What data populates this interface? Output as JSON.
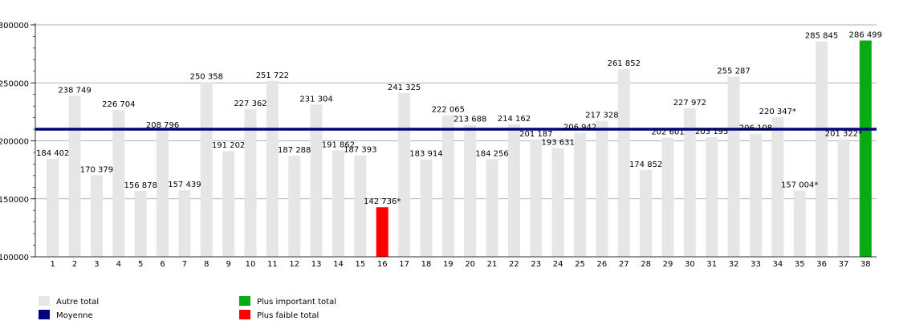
{
  "chart_data": {
    "type": "bar",
    "categories": [
      "1",
      "2",
      "3",
      "4",
      "5",
      "6",
      "7",
      "8",
      "9",
      "10",
      "11",
      "12",
      "13",
      "14",
      "15",
      "16",
      "17",
      "18",
      "19",
      "20",
      "21",
      "22",
      "23",
      "24",
      "25",
      "26",
      "27",
      "28",
      "29",
      "30",
      "31",
      "32",
      "33",
      "34",
      "35",
      "36",
      "37",
      "38"
    ],
    "values": [
      184402,
      238749,
      170379,
      226704,
      156878,
      208796,
      157439,
      250358,
      191202,
      227362,
      251722,
      187288,
      231304,
      191862,
      187393,
      142736,
      241325,
      183914,
      222065,
      213688,
      184256,
      214162,
      201187,
      193631,
      206942,
      217328,
      261852,
      174852,
      202601,
      227972,
      203195,
      255287,
      206108,
      220347,
      157004,
      285845,
      201322,
      286499
    ],
    "labels": [
      "184 402",
      "238 749",
      "170 379",
      "226 704",
      "156 878",
      "208 796",
      "157 439",
      "250 358",
      "191 202",
      "227 362",
      "251 722",
      "187 288",
      "231 304",
      "191 862",
      "187 393",
      "142 736*",
      "241 325",
      "183 914",
      "222 065",
      "213 688",
      "184 256",
      "214 162",
      "201 187",
      "193 631",
      "206 942",
      "217 328",
      "261 852",
      "174 852",
      "202 601",
      "227 972",
      "203 195",
      "255 287",
      "206 108",
      "220 347*",
      "157 004*",
      "285 845",
      "201 322*",
      "286 499"
    ],
    "y_ticks": [
      "100000",
      "150000",
      "200000",
      "250000",
      "300000"
    ],
    "ylim": [
      100000,
      300000
    ],
    "average": 210000,
    "highlight": {
      "min_index": 15,
      "max_index": 37
    },
    "colors": {
      "other": "#e6e6e6",
      "average": "#000080",
      "max": "#0aaa14",
      "min": "#ff0000",
      "grid": "#999999"
    },
    "legend": [
      {
        "label": "Autre total",
        "color": "#e6e6e6"
      },
      {
        "label": "Moyenne",
        "color": "#000080"
      },
      {
        "label": "Plus important total",
        "color": "#0aaa14"
      },
      {
        "label": "Plus faible total",
        "color": "#ff0000"
      }
    ],
    "grid": true,
    "legend_position": "bottom"
  }
}
